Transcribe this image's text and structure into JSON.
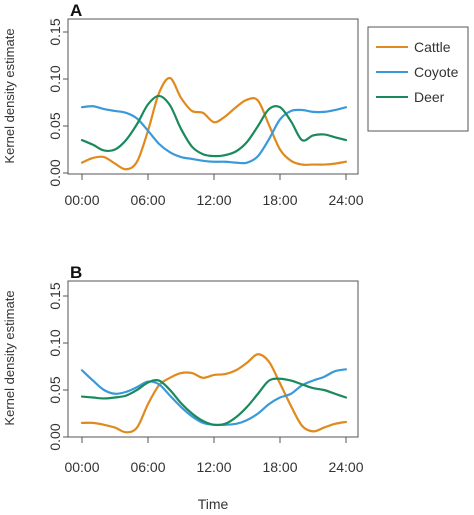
{
  "colors": {
    "Cattle": "#e08a1e",
    "Coyote": "#3a9ad9",
    "Deer": "#1a8a5c"
  },
  "legend": {
    "items": [
      "Cattle",
      "Coyote",
      "Deer"
    ],
    "placement": "top-right, outside panel A"
  },
  "x_title": "Time",
  "chart_data": [
    {
      "type": "line",
      "panel_label": "A",
      "title": "",
      "xlabel": "",
      "ylabel": "Kernel density estimate",
      "xlim": [
        0,
        24
      ],
      "ylim": [
        0,
        0.15
      ],
      "x_ticks": [
        "00:00",
        "06:00",
        "12:00",
        "18:00",
        "24:00"
      ],
      "y_ticks": [
        "0.00",
        "0.05",
        "0.10",
        "0.15"
      ],
      "x": [
        0,
        1,
        2,
        3,
        4,
        5,
        6,
        7,
        8,
        9,
        10,
        11,
        12,
        13,
        14,
        15,
        16,
        17,
        18,
        19,
        20,
        21,
        22,
        23,
        24
      ],
      "series": [
        {
          "name": "Cattle",
          "values": [
            0.011,
            0.016,
            0.017,
            0.01,
            0.004,
            0.012,
            0.045,
            0.085,
            0.101,
            0.08,
            0.066,
            0.064,
            0.054,
            0.06,
            0.07,
            0.078,
            0.077,
            0.051,
            0.025,
            0.013,
            0.009,
            0.009,
            0.009,
            0.01,
            0.012
          ]
        },
        {
          "name": "Coyote",
          "values": [
            0.07,
            0.071,
            0.068,
            0.066,
            0.064,
            0.058,
            0.045,
            0.031,
            0.022,
            0.017,
            0.015,
            0.013,
            0.012,
            0.012,
            0.011,
            0.011,
            0.018,
            0.036,
            0.057,
            0.066,
            0.067,
            0.065,
            0.065,
            0.067,
            0.07
          ]
        },
        {
          "name": "Deer",
          "values": [
            0.035,
            0.03,
            0.024,
            0.025,
            0.035,
            0.052,
            0.073,
            0.082,
            0.072,
            0.047,
            0.028,
            0.02,
            0.018,
            0.019,
            0.023,
            0.033,
            0.05,
            0.068,
            0.07,
            0.055,
            0.035,
            0.04,
            0.041,
            0.038,
            0.035
          ]
        }
      ]
    },
    {
      "type": "line",
      "panel_label": "B",
      "title": "",
      "xlabel": "Time",
      "ylabel": "Kernel density estimate",
      "xlim": [
        0,
        24
      ],
      "ylim": [
        0,
        0.15
      ],
      "x_ticks": [
        "00:00",
        "06:00",
        "12:00",
        "18:00",
        "24:00"
      ],
      "y_ticks": [
        "0.00",
        "0.05",
        "0.10",
        "0.15"
      ],
      "x": [
        0,
        1,
        2,
        3,
        4,
        5,
        6,
        7,
        8,
        9,
        10,
        11,
        12,
        13,
        14,
        15,
        16,
        17,
        18,
        19,
        20,
        21,
        22,
        23,
        24
      ],
      "series": [
        {
          "name": "Cattle",
          "values": [
            0.015,
            0.015,
            0.013,
            0.01,
            0.005,
            0.01,
            0.035,
            0.055,
            0.063,
            0.068,
            0.068,
            0.063,
            0.066,
            0.067,
            0.071,
            0.079,
            0.088,
            0.08,
            0.057,
            0.033,
            0.012,
            0.006,
            0.01,
            0.014,
            0.016
          ]
        },
        {
          "name": "Coyote",
          "values": [
            0.071,
            0.06,
            0.05,
            0.046,
            0.048,
            0.053,
            0.059,
            0.056,
            0.044,
            0.032,
            0.022,
            0.015,
            0.013,
            0.013,
            0.014,
            0.018,
            0.025,
            0.035,
            0.042,
            0.046,
            0.055,
            0.06,
            0.064,
            0.07,
            0.072
          ]
        },
        {
          "name": "Deer",
          "values": [
            0.043,
            0.042,
            0.041,
            0.042,
            0.044,
            0.05,
            0.058,
            0.06,
            0.05,
            0.036,
            0.025,
            0.017,
            0.013,
            0.014,
            0.021,
            0.032,
            0.046,
            0.06,
            0.062,
            0.06,
            0.056,
            0.052,
            0.05,
            0.046,
            0.042
          ]
        }
      ]
    }
  ]
}
